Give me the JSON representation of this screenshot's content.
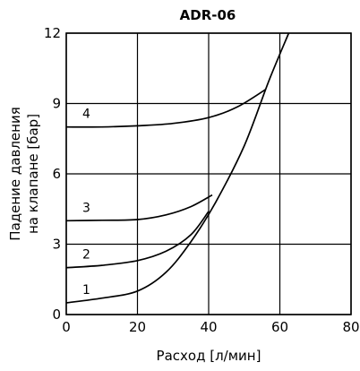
{
  "chart_data": {
    "type": "line",
    "title": "ADR-06",
    "xlabel": "Расход [л/мин]",
    "ylabel_lines": [
      "Падение давления",
      "на клапане [бар]"
    ],
    "xlim": [
      0,
      80
    ],
    "ylim": [
      0,
      12
    ],
    "x_ticks": [
      0,
      20,
      40,
      60,
      80
    ],
    "y_ticks": [
      0,
      3,
      6,
      9,
      12
    ],
    "grid": true,
    "legend": "none",
    "series": [
      {
        "name": "1",
        "x": [
          0,
          10,
          20,
          28,
          35,
          42,
          50,
          57,
          62.5
        ],
        "y": [
          0.5,
          0.7,
          1.0,
          1.8,
          3.1,
          4.8,
          7.2,
          10.0,
          12.0
        ]
      },
      {
        "name": "2",
        "x": [
          0,
          10,
          20,
          28,
          35,
          40
        ],
        "y": [
          2.0,
          2.1,
          2.3,
          2.7,
          3.4,
          4.4
        ]
      },
      {
        "name": "3",
        "x": [
          0,
          10,
          20,
          28,
          35,
          41
        ],
        "y": [
          4.0,
          4.02,
          4.05,
          4.25,
          4.6,
          5.1
        ]
      },
      {
        "name": "4",
        "x": [
          0,
          10,
          20,
          30,
          40,
          48,
          56
        ],
        "y": [
          8.0,
          8.0,
          8.05,
          8.15,
          8.4,
          8.85,
          9.6
        ]
      }
    ]
  }
}
